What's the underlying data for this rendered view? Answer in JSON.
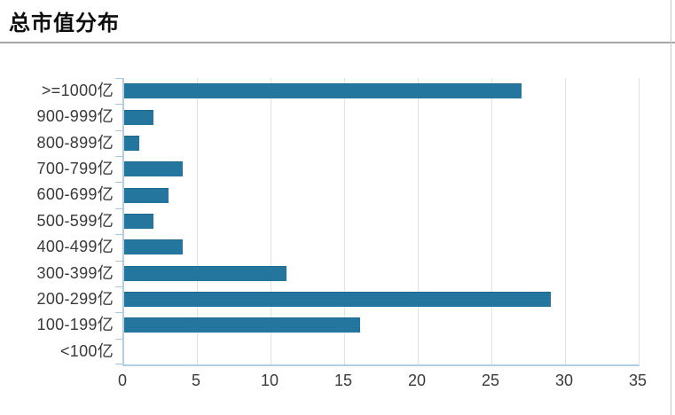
{
  "header": {
    "title": "总市值分布"
  },
  "chart_data": {
    "type": "bar",
    "orientation": "horizontal",
    "title": "总市值分布",
    "categories": [
      ">=1000亿",
      "900-999亿",
      "800-899亿",
      "700-799亿",
      "600-699亿",
      "500-599亿",
      "400-499亿",
      "300-399亿",
      "200-299亿",
      "100-199亿",
      "<100亿"
    ],
    "values": [
      27,
      2,
      1,
      4,
      3,
      2,
      4,
      11,
      29,
      16,
      0
    ],
    "xlabel": "",
    "ylabel": "",
    "xlim": [
      0,
      35
    ],
    "x_ticks": [
      0,
      5,
      10,
      15,
      20,
      25,
      30,
      35
    ],
    "grid": "vertical-only",
    "legend": "none"
  },
  "colors": {
    "bar": "#24769f",
    "bar_edge": "#1d6890",
    "axis": "#b3cde4",
    "tick": "#aac6e2",
    "gridline": "#e2e2e2",
    "label": "#3a3a3a",
    "title": "#0d0d0d",
    "divider": "#a6a6a6",
    "page_border": "#c9c9c9"
  }
}
